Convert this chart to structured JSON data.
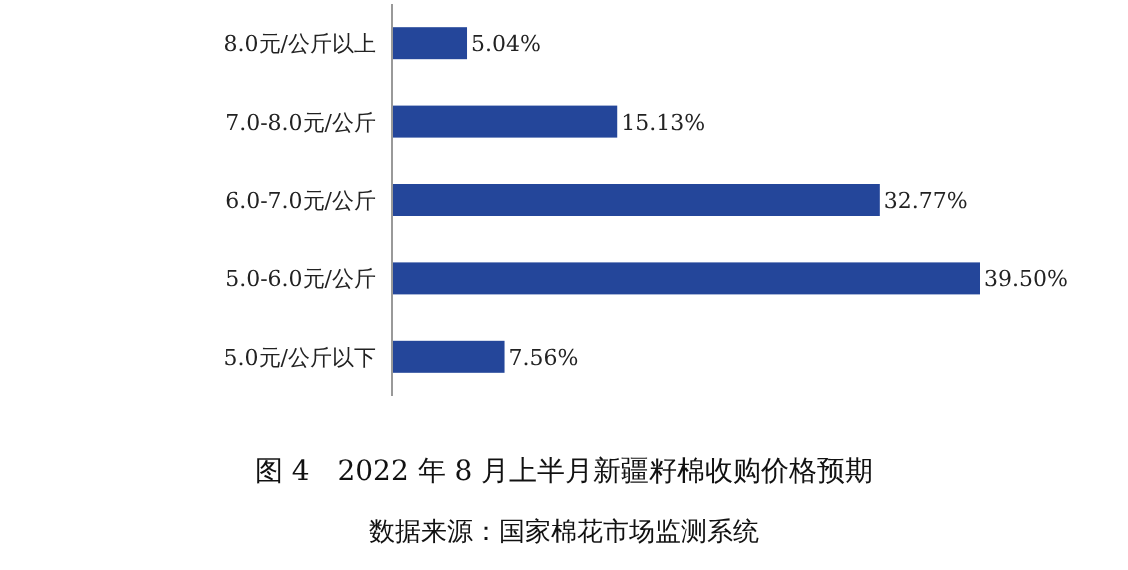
{
  "chart_data": {
    "type": "bar",
    "orientation": "horizontal",
    "title": "图 4　2022 年 8 月上半月新疆籽棉收购价格预期",
    "annotations": [
      "数据来源：国家棉花市场监测系统"
    ],
    "categories": [
      "8.0元/公斤以上",
      "7.0-8.0元/公斤",
      "6.0-7.0元/公斤",
      "5.0-6.0元/公斤",
      "5.0元/公斤以下"
    ],
    "values": [
      5.04,
      15.13,
      32.77,
      39.5,
      7.56
    ],
    "value_labels": [
      "5.04%",
      "15.13%",
      "32.77%",
      "39.50%",
      "7.56%"
    ],
    "color": "#24469a"
  }
}
